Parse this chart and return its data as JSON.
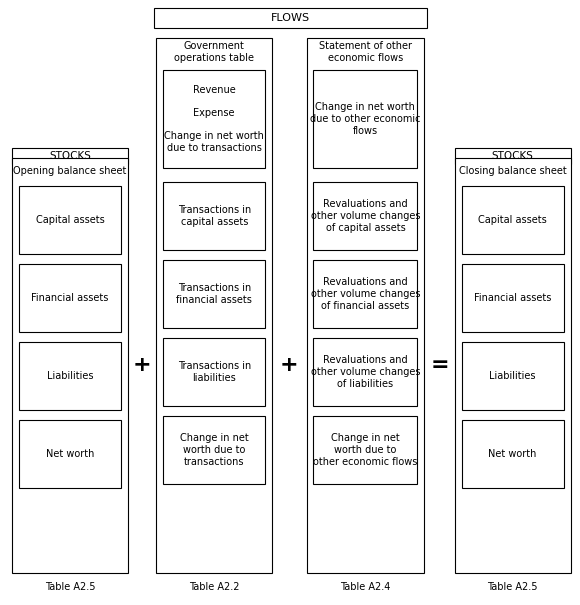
{
  "title": "FLOWS",
  "bg_color": "#ffffff",
  "border_color": "#000000",
  "stocks_left_label": "STOCKS",
  "stocks_right_label": "STOCKS",
  "col1_header": "Opening balance sheet",
  "col1_boxes": [
    "Capital assets",
    "Financial assets",
    "Liabilities",
    "Net worth"
  ],
  "col1_table": "Table A2.5",
  "col2_header": "Government\noperations table",
  "col2_header_box": "Revenue\n\nExpense\n\nChange in net worth\ndue to transactions",
  "col2_boxes": [
    "Transactions in\ncapital assets",
    "Transactions in\nfinancial assets",
    "Transactions in\nliabilities",
    "Change in net\nworth due to\ntransactions"
  ],
  "col2_table": "Table A2.2",
  "col3_header": "Statement of other\neconomic flows",
  "col3_header_box": "Change in net worth\ndue to other economic\nflows",
  "col3_boxes": [
    "Revaluations and\nother volume changes\nof capital assets",
    "Revaluations and\nother volume changes\nof financial assets",
    "Revaluations and\nother volume changes\nof liabilities",
    "Change in net\nworth due to\nother economic flows"
  ],
  "col3_table": "Table A2.4",
  "col4_header": "Closing balance sheet",
  "col4_boxes": [
    "Capital assets",
    "Financial assets",
    "Liabilities",
    "Net worth"
  ],
  "col4_table": "Table A2.5",
  "operator_plus1": "+",
  "operator_plus2": "+",
  "operator_equals": "="
}
